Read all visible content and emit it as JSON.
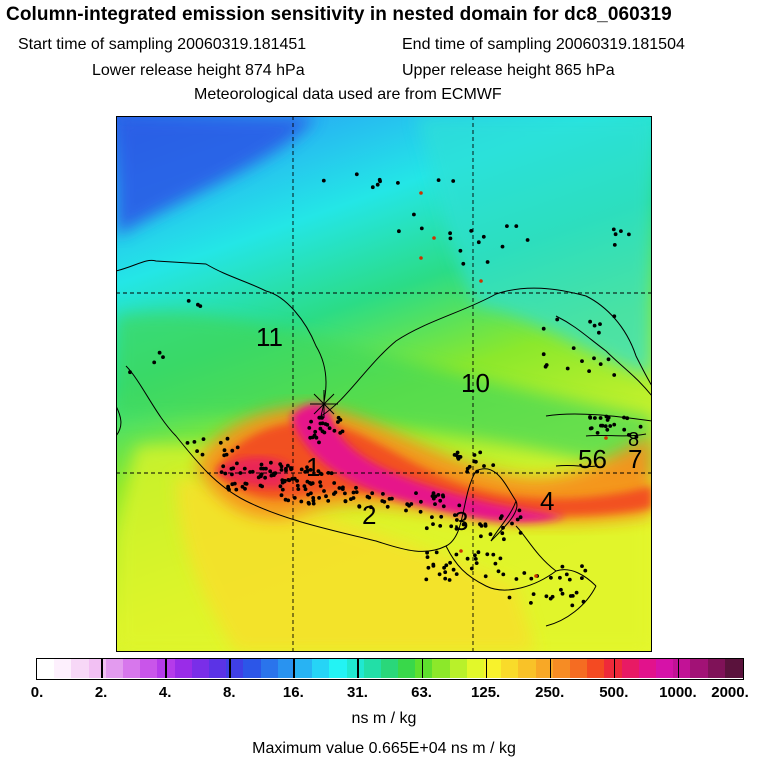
{
  "header": {
    "title": "Column-integrated emission sensitivity in nested domain for dc8_060319",
    "start_time": "Start time of sampling 20060319.181451",
    "end_time": "End time of sampling 20060319.181504",
    "lower_release": "Lower release height  874 hPa",
    "upper_release": "Upper release height  865 hPa",
    "met_data": "Meteorological data used are from ECMWF"
  },
  "map": {
    "labels": [
      {
        "text": "11"
      },
      {
        "text": "10"
      },
      {
        "text": "1"
      },
      {
        "text": "2"
      },
      {
        "text": "3"
      },
      {
        "text": "4"
      },
      {
        "text": "56"
      },
      {
        "text": "7"
      },
      {
        "text": "8"
      }
    ]
  },
  "colorbar": {
    "colors": [
      "#ffffff",
      "#fdf0fd",
      "#f7d8f7",
      "#f2c0f3",
      "#e39bef",
      "#d777ec",
      "#c955ea",
      "#b53bea",
      "#9a2ce8",
      "#7a2ee8",
      "#5b33e6",
      "#3f3fe6",
      "#2c56e8",
      "#2a74ec",
      "#2993f0",
      "#28b3f3",
      "#26d4f6",
      "#23f3f4",
      "#20e8d0",
      "#22dfa7",
      "#2ad77a",
      "#39d84a",
      "#5ee02e",
      "#8ce82a",
      "#b9f12a",
      "#e2f82a",
      "#f8f22c",
      "#f9db2a",
      "#f9c228",
      "#f8a826",
      "#f68c24",
      "#f56c22",
      "#f44a22",
      "#ef2a3a",
      "#e81a64",
      "#e2128c",
      "#d612a8",
      "#c21296",
      "#a21276",
      "#7f1258",
      "#5a123c"
    ],
    "ticks": [
      "0.",
      "2.",
      "4.",
      "8.",
      "16.",
      "31.",
      "63.",
      "125.",
      "250.",
      "500.",
      "1000.",
      "2000."
    ],
    "unit": "ns m / kg"
  },
  "footer": {
    "max_value": "Maximum value  0.665E+04 ns m / kg"
  }
}
